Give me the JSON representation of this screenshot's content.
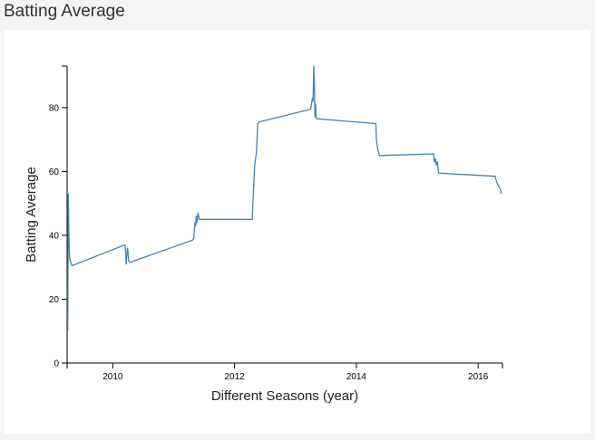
{
  "page": {
    "title": "Batting Average"
  },
  "chart_data": {
    "type": "line",
    "title": "",
    "xlabel": "Different Seasons (year)",
    "ylabel": "Batting Average",
    "xlim": [
      2009.25,
      2016.4
    ],
    "ylim": [
      0,
      93
    ],
    "xticks": [
      2010,
      2012,
      2014,
      2016
    ],
    "yticks": [
      0,
      20,
      40,
      60,
      80
    ],
    "grid": false,
    "line_color": "#4682b4",
    "series": [
      {
        "x": [
          2009.26,
          2009.27,
          2009.28,
          2009.29,
          2009.3,
          2009.31,
          2009.32,
          2009.33,
          2010.2,
          2010.21,
          2010.22,
          2010.24,
          2010.25,
          2010.26,
          2010.28,
          2011.31,
          2011.33,
          2011.35,
          2011.36,
          2011.37,
          2011.38,
          2011.4,
          2011.42,
          2011.45,
          2012.29,
          2012.3,
          2012.33,
          2012.36,
          2012.38,
          2012.4,
          2013.25,
          2013.28,
          2013.29,
          2013.3,
          2013.31,
          2013.32,
          2013.33,
          2013.34,
          2013.35,
          2014.32,
          2014.33,
          2014.35,
          2014.38,
          2015.27,
          2015.28,
          2015.3,
          2015.31,
          2015.33,
          2015.35,
          2016.28,
          2016.3,
          2016.32,
          2016.35,
          2016.37,
          2016.38
        ],
        "y": [
          10,
          53,
          40,
          33,
          32,
          31.5,
          31,
          30.5,
          37,
          35,
          31,
          36,
          35,
          32,
          31.5,
          38.5,
          39,
          44,
          43,
          46,
          44,
          47,
          45,
          45,
          45,
          50,
          62,
          66,
          75,
          75.5,
          79.5,
          83,
          82,
          93,
          88,
          77,
          81,
          77,
          76.5,
          75,
          70,
          67,
          65,
          65.5,
          63,
          64,
          62,
          63,
          59.5,
          58.5,
          57,
          56,
          55,
          54,
          53
        ]
      }
    ]
  }
}
